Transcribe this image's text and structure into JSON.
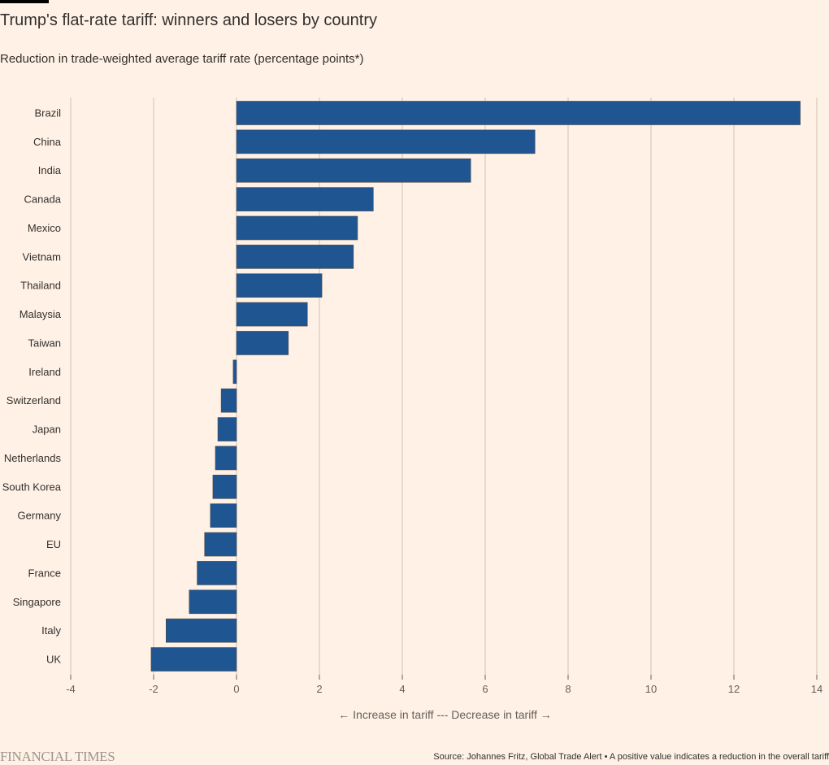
{
  "header": {
    "title": "Trump's flat-rate tariff: winners and losers by country",
    "subtitle": "Reduction in trade-weighted average tariff rate (percentage points*)"
  },
  "chart_data": {
    "type": "bar",
    "orientation": "horizontal",
    "title": "Trump's flat-rate tariff: winners and losers by country",
    "subtitle": "Reduction in trade-weighted average tariff rate (percentage points*)",
    "xlabel": "← Increase in tariff --- Decrease in tariff →",
    "ylabel": "",
    "xlim": [
      -4,
      14
    ],
    "xticks": [
      -4,
      -2,
      0,
      2,
      4,
      6,
      8,
      10,
      12,
      14
    ],
    "grid": "vertical",
    "bar_color": "#1f5591",
    "categories": [
      "Brazil",
      "China",
      "India",
      "Canada",
      "Mexico",
      "Vietnam",
      "Thailand",
      "Malaysia",
      "Taiwan",
      "Ireland",
      "Switzerland",
      "Japan",
      "Netherlands",
      "South Korea",
      "Germany",
      "EU",
      "France",
      "Singapore",
      "Italy",
      "UK"
    ],
    "values": [
      13.6,
      7.2,
      5.65,
      3.3,
      2.92,
      2.82,
      2.06,
      1.71,
      1.25,
      -0.08,
      -0.37,
      -0.45,
      -0.51,
      -0.57,
      -0.63,
      -0.77,
      -0.95,
      -1.14,
      -1.7,
      -2.06
    ]
  },
  "footer": {
    "logo": "FINANCIAL TIMES",
    "source": "Source: Johannes Fritz, Global Trade Alert • A positive value indicates a reduction in the overall tariff"
  }
}
